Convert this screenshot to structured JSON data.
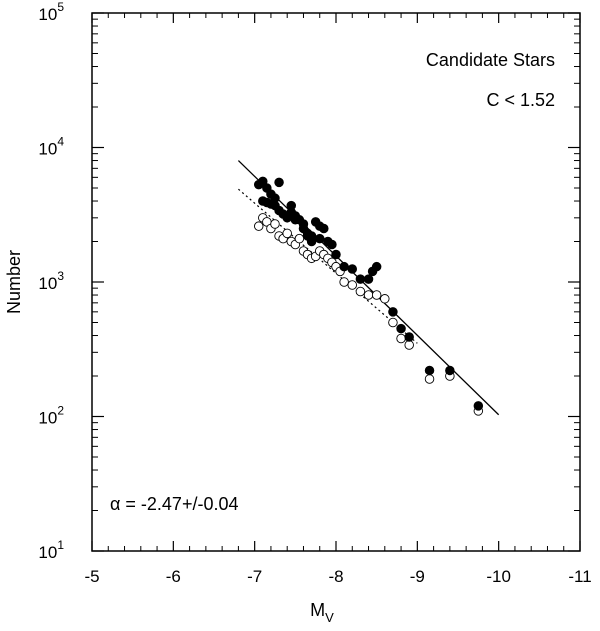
{
  "chart_data": {
    "type": "scatter",
    "title": "",
    "xlabel": "M",
    "xlabel_sub": "V",
    "ylabel": "Number",
    "xlim": [
      -5,
      -11
    ],
    "x_reversed": true,
    "ylim": [
      10,
      100000
    ],
    "yscale": "log",
    "x_ticks": [
      "-5",
      "-6",
      "-7",
      "-8",
      "-9",
      "-10",
      "-11"
    ],
    "y_ticks": [
      {
        "base": "10",
        "exp": "1"
      },
      {
        "base": "10",
        "exp": "2"
      },
      {
        "base": "10",
        "exp": "3"
      },
      {
        "base": "10",
        "exp": "4"
      },
      {
        "base": "10",
        "exp": "5"
      }
    ],
    "annotations": {
      "label1": "Candidate Stars",
      "label2": "C < 1.52",
      "alpha": "α = -2.47+/-0.04"
    },
    "grid": false,
    "series": [
      {
        "marker": "filled-circle",
        "x": [
          -7.05,
          -7.1,
          -7.15,
          -7.2,
          -7.25,
          -7.1,
          -7.15,
          -7.2,
          -7.25,
          -7.3,
          -7.3,
          -7.35,
          -7.4,
          -7.45,
          -7.5,
          -7.55,
          -7.6,
          -7.65,
          -7.7,
          -7.75,
          -7.8,
          -7.85,
          -7.9,
          -7.95,
          -7.45,
          -7.5,
          -7.6,
          -7.65,
          -7.7,
          -7.8,
          -8.0,
          -8.1,
          -8.2,
          -8.3,
          -8.4,
          -8.45,
          -8.5,
          -8.7,
          -8.8,
          -8.9,
          -9.15,
          -9.4,
          -9.75
        ],
        "y": [
          5300,
          5600,
          5000,
          4500,
          4200,
          4000,
          3900,
          3800,
          3700,
          5500,
          3400,
          3200,
          3000,
          3700,
          3100,
          2900,
          2500,
          2300,
          2200,
          2800,
          2600,
          2500,
          2000,
          1900,
          3300,
          2900,
          2700,
          2200,
          2000,
          2100,
          1600,
          1300,
          1250,
          1050,
          1050,
          1200,
          1300,
          600,
          450,
          390,
          220,
          220,
          120
        ]
      },
      {
        "marker": "open-circle",
        "x": [
          -7.05,
          -7.1,
          -7.15,
          -7.2,
          -7.25,
          -7.3,
          -7.35,
          -7.4,
          -7.45,
          -7.5,
          -7.55,
          -7.6,
          -7.65,
          -7.7,
          -7.75,
          -7.8,
          -7.85,
          -7.9,
          -7.95,
          -8.0,
          -8.05,
          -8.1,
          -8.2,
          -8.3,
          -8.4,
          -8.5,
          -8.6,
          -8.7,
          -8.8,
          -8.9,
          -9.15,
          -9.4,
          -9.75
        ],
        "y": [
          2600,
          3000,
          2800,
          2500,
          2700,
          2200,
          2100,
          2300,
          2000,
          1900,
          2100,
          1700,
          1600,
          1500,
          1550,
          1700,
          1600,
          1500,
          1400,
          1300,
          1200,
          1000,
          950,
          850,
          800,
          800,
          750,
          500,
          380,
          340,
          190,
          200,
          110
        ]
      }
    ],
    "fit_lines": [
      {
        "style": "solid",
        "x": [
          -6.8,
          -10.0
        ],
        "y": [
          8000,
          103
        ]
      },
      {
        "style": "dotted",
        "x": [
          -6.8,
          -9.0
        ],
        "y": [
          4900,
          350
        ]
      }
    ]
  }
}
